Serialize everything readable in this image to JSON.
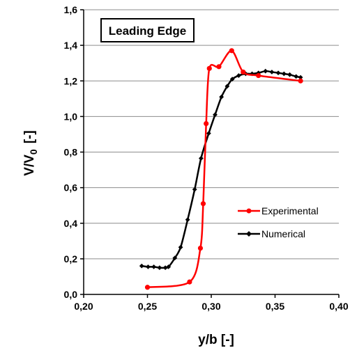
{
  "chart_data": {
    "type": "line",
    "title": "Leading Edge",
    "xlabel": "y/b [-]",
    "ylabel_main": "V/V",
    "ylabel_sub": "0",
    "ylabel_unit": "[-]",
    "xlim": [
      0.2,
      0.4
    ],
    "ylim": [
      0.0,
      1.6
    ],
    "x_ticks": [
      0.2,
      0.25,
      0.3,
      0.35,
      0.4
    ],
    "x_tick_labels": [
      "0,20",
      "0,25",
      "0,30",
      "0,35",
      "0,40"
    ],
    "y_ticks": [
      0.0,
      0.2,
      0.4,
      0.6,
      0.8,
      1.0,
      1.2,
      1.4,
      1.6
    ],
    "y_tick_labels": [
      "0,0",
      "0,2",
      "0,4",
      "0,6",
      "0,8",
      "1,0",
      "1,2",
      "1,4",
      "1,6"
    ],
    "grid": "horizontal",
    "legend_position": "lower-right",
    "series": [
      {
        "name": "Experimental",
        "color": "#ff0000",
        "marker": "circle",
        "x": [
          0.25,
          0.283,
          0.2915,
          0.2937,
          0.296,
          0.2985,
          0.306,
          0.316,
          0.325,
          0.337,
          0.37
        ],
        "y": [
          0.04,
          0.07,
          0.26,
          0.51,
          0.96,
          1.27,
          1.28,
          1.37,
          1.25,
          1.23,
          1.2
        ]
      },
      {
        "name": "Numerical",
        "color": "#000000",
        "marker": "diamond",
        "x": [
          0.2455,
          0.2505,
          0.255,
          0.2595,
          0.264,
          0.2665,
          0.2715,
          0.276,
          0.2815,
          0.287,
          0.292,
          0.298,
          0.303,
          0.308,
          0.3125,
          0.3165,
          0.3215,
          0.327,
          0.332,
          0.337,
          0.3425,
          0.3475,
          0.3525,
          0.357,
          0.3615,
          0.3665,
          0.37
        ],
        "y": [
          0.16,
          0.155,
          0.155,
          0.15,
          0.15,
          0.155,
          0.205,
          0.265,
          0.42,
          0.59,
          0.765,
          0.905,
          1.01,
          1.11,
          1.17,
          1.21,
          1.23,
          1.24,
          1.24,
          1.245,
          1.255,
          1.25,
          1.245,
          1.24,
          1.235,
          1.225,
          1.22
        ]
      }
    ]
  }
}
